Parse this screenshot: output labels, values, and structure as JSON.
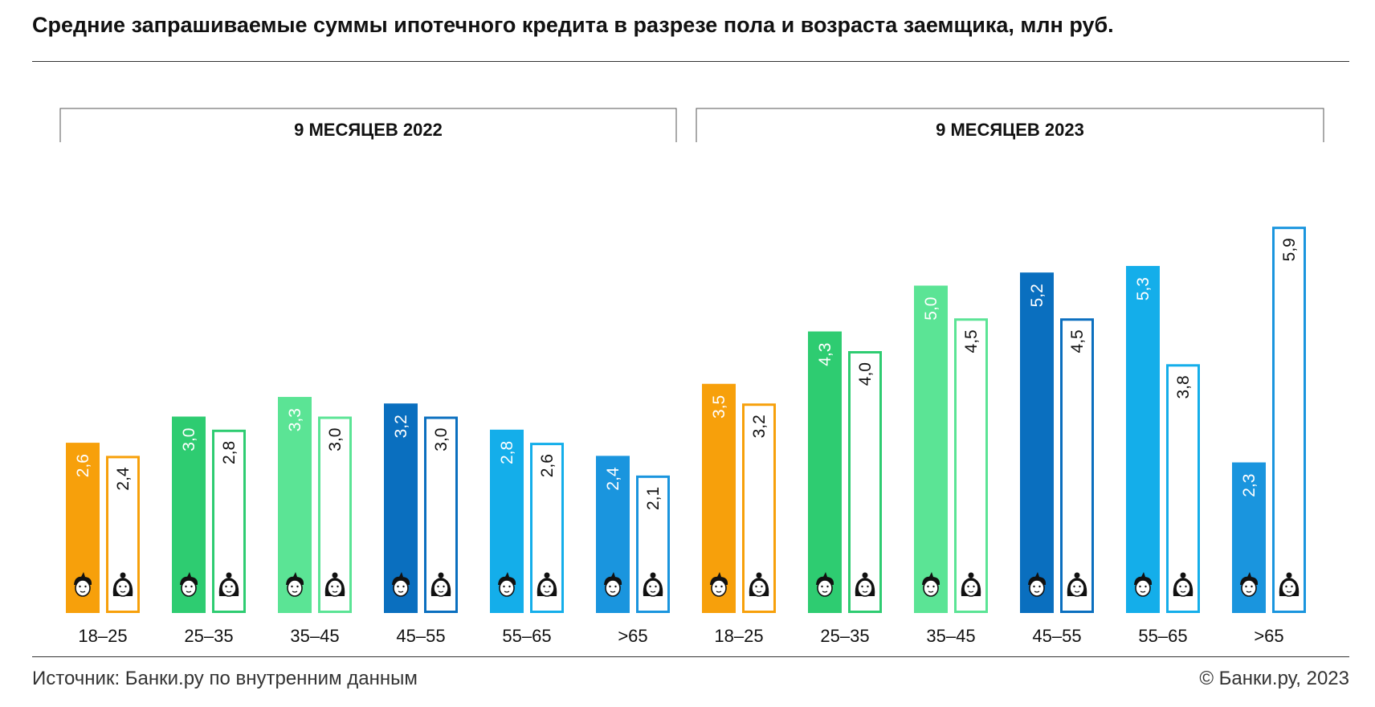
{
  "title": "Средние запрашиваемые суммы ипотечного кредита в разрезе пола и возраста заемщика, млн руб.",
  "footer": {
    "source": "Источник: Банки.ру по внутренним данным",
    "copyright": "© Банки.ру, 2023"
  },
  "icons": {
    "male": "man-face-icon",
    "female": "woman-face-icon"
  },
  "colors": {
    "18–25": "#F7A00B",
    "25–35": "#2ECC71",
    "35–45": "#5BE495",
    "45–55": "#0A6FBF",
    "55–65": "#14AEEA",
    ">65": "#1A95DE"
  },
  "chart_data": {
    "type": "bar",
    "ylim": [
      0,
      6
    ],
    "value_format": "comma-decimal",
    "categories": [
      "18–25",
      "25–35",
      "35–45",
      "45–55",
      "55–65",
      ">65"
    ],
    "panels": [
      {
        "label": "9 МЕСЯЦЕВ 2022",
        "series": [
          {
            "icon": "man-face-icon",
            "style": "filled",
            "values": [
              2.6,
              3.0,
              3.3,
              3.2,
              2.8,
              2.4
            ]
          },
          {
            "icon": "woman-face-icon",
            "style": "outlined",
            "values": [
              2.4,
              2.8,
              3.0,
              3.0,
              2.6,
              2.1
            ]
          }
        ]
      },
      {
        "label": "9 МЕСЯЦЕВ 2023",
        "series": [
          {
            "icon": "man-face-icon",
            "style": "filled",
            "values": [
              3.5,
              4.3,
              5.0,
              5.2,
              5.3,
              2.3
            ]
          },
          {
            "icon": "woman-face-icon",
            "style": "outlined",
            "values": [
              3.2,
              4.0,
              4.5,
              4.5,
              3.8,
              5.9
            ]
          }
        ]
      }
    ]
  }
}
